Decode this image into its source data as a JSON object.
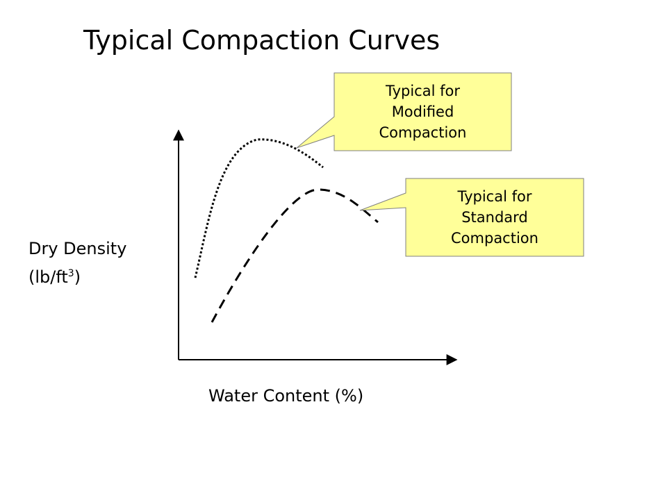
{
  "title": "Typical Compaction Curves",
  "axes": {
    "ylabel_line1": "Dry Density",
    "ylabel_line2_prefix": "(lb/ft",
    "ylabel_superscript": "3",
    "ylabel_line2_suffix": ")",
    "xlabel": "Water Content (%)"
  },
  "callouts": {
    "modified": "Typical for\nModified\nCompaction",
    "standard": "Typical for\nStandard\nCompaction"
  },
  "colors": {
    "callout_fill": "#ffff99",
    "line": "#000000"
  }
}
